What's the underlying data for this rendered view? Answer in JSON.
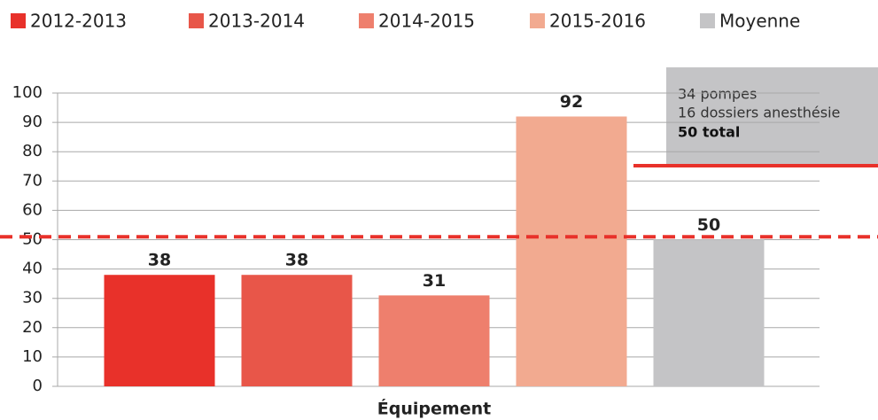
{
  "chart_data": {
    "type": "bar",
    "categories": [
      "Équipement"
    ],
    "series": [
      {
        "name": "2012-2013",
        "color": "#e8312a",
        "values": [
          38
        ]
      },
      {
        "name": "2013-2014",
        "color": "#e85649",
        "values": [
          38
        ]
      },
      {
        "name": "2014-2015",
        "color": "#ee7f6d",
        "values": [
          31
        ]
      },
      {
        "name": "2015-2016",
        "color": "#f2aa90",
        "values": [
          92
        ]
      },
      {
        "name": "Moyenne",
        "color": "#c4c4c6",
        "values": [
          50
        ]
      }
    ],
    "reference_line": {
      "value": 51,
      "color": "#e8312a"
    },
    "annotation": {
      "lines": [
        "34 pompes",
        "16 dossiers anesthésie"
      ],
      "total": "50 total"
    },
    "ylim": [
      0,
      100
    ],
    "yticks": [
      0,
      10,
      20,
      30,
      40,
      50,
      60,
      70,
      80,
      90,
      100
    ],
    "grid": true,
    "legend": "top"
  }
}
